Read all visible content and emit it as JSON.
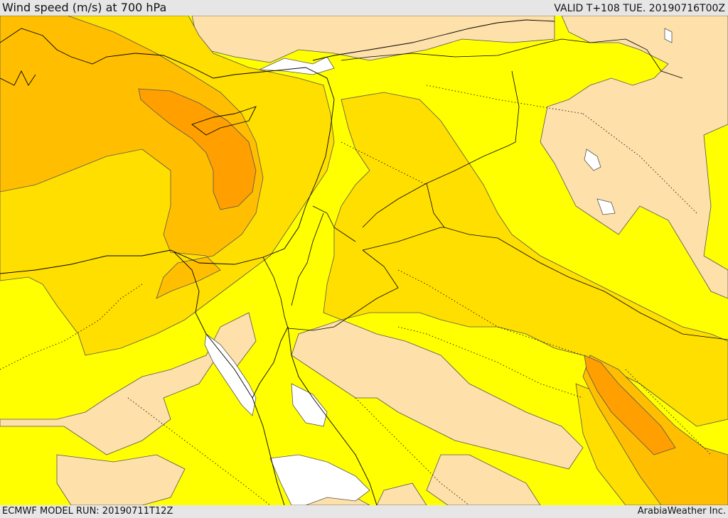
{
  "header": {
    "title": "Wind speed (m/s) at 700 hPa",
    "valid_time": "VALID T+108 TUE. 20190716T00Z"
  },
  "footer": {
    "model_run": "ECMWF MODEL RUN: 20190711T12Z",
    "credit": "ArabiaWeather Inc."
  },
  "map": {
    "field": "700 hPa wind speed shading",
    "colors": {
      "calm": "#ffffff",
      "light": "#fde0aa",
      "moderate": "#ffff00",
      "fresh": "#ffdf00",
      "strong": "#ffbf00",
      "stronger": "#ff9f00",
      "coastline": "#000000",
      "border": "#000000",
      "contour": "#555555"
    }
  }
}
